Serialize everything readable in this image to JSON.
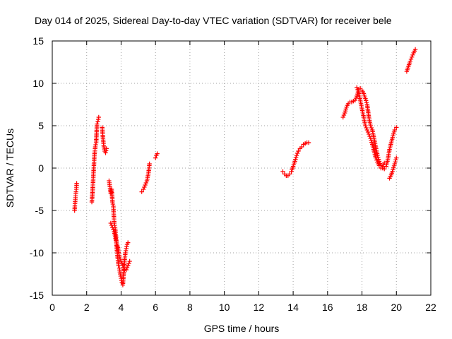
{
  "chart_data": {
    "type": "scatter",
    "title": "Day 014 of 2025, Sidereal Day-to-day VTEC variation (SDTVAR) for receiver bele",
    "xlabel": "GPS time / hours",
    "ylabel": "SDTVAR / TECUs",
    "xlim": [
      0,
      22
    ],
    "ylim": [
      -15,
      15
    ],
    "xticks": [
      0,
      2,
      4,
      6,
      8,
      10,
      12,
      14,
      16,
      18,
      20,
      22
    ],
    "yticks": [
      -15,
      -10,
      -5,
      0,
      5,
      10,
      15
    ],
    "xtick_labels": [
      "0",
      "2",
      "4",
      "6",
      "8",
      "10",
      "12",
      "14",
      "16",
      "18",
      "20",
      "22"
    ],
    "ytick_labels": [
      "-15",
      "-10",
      "-5",
      "0",
      "5",
      "10",
      "15"
    ],
    "grid": true,
    "marker": "+",
    "color": "#ff0000",
    "series": [
      {
        "name": "SDTVAR",
        "segments": [
          [
            [
              1.3,
              -5.0
            ],
            [
              1.32,
              -4.2
            ],
            [
              1.35,
              -3.5
            ],
            [
              1.38,
              -2.8
            ],
            [
              1.4,
              -2.5
            ],
            [
              1.42,
              -1.8
            ]
          ],
          [
            [
              2.3,
              -4.0
            ],
            [
              2.35,
              -2.5
            ],
            [
              2.4,
              -0.5
            ],
            [
              2.45,
              1.5
            ],
            [
              2.5,
              2.5
            ],
            [
              2.55,
              3.0
            ],
            [
              2.6,
              5.2
            ],
            [
              2.65,
              5.5
            ],
            [
              2.7,
              6.0
            ]
          ],
          [
            [
              2.9,
              4.8
            ],
            [
              2.95,
              3.5
            ],
            [
              3.0,
              2.5
            ],
            [
              3.05,
              2.0
            ],
            [
              3.1,
              1.8
            ],
            [
              3.15,
              2.3
            ]
          ],
          [
            [
              3.3,
              -1.5
            ],
            [
              3.35,
              -2.2
            ],
            [
              3.4,
              -3.0
            ],
            [
              3.45,
              -2.5
            ],
            [
              3.5,
              -4.0
            ],
            [
              3.55,
              -4.5
            ],
            [
              3.6,
              -6.5
            ],
            [
              3.65,
              -7.0
            ],
            [
              3.7,
              -8.0
            ],
            [
              3.75,
              -9.5
            ],
            [
              3.8,
              -10.5
            ],
            [
              3.85,
              -11.5
            ],
            [
              3.9,
              -11.8
            ],
            [
              3.95,
              -12.5
            ],
            [
              4.0,
              -13.0
            ],
            [
              4.05,
              -13.5
            ],
            [
              4.1,
              -13.8
            ],
            [
              4.15,
              -12.5
            ],
            [
              4.2,
              -11.0
            ],
            [
              4.25,
              -10.0
            ],
            [
              4.3,
              -9.5
            ],
            [
              4.35,
              -9.0
            ],
            [
              4.4,
              -8.8
            ]
          ],
          [
            [
              3.4,
              -6.5
            ],
            [
              3.5,
              -7.0
            ],
            [
              3.6,
              -7.5
            ],
            [
              3.7,
              -8.5
            ],
            [
              3.8,
              -9.2
            ],
            [
              3.9,
              -10.5
            ],
            [
              4.0,
              -11.0
            ],
            [
              4.1,
              -11.5
            ],
            [
              4.2,
              -12.0
            ],
            [
              4.3,
              -12.0
            ],
            [
              4.4,
              -11.5
            ],
            [
              4.5,
              -11.0
            ]
          ],
          [
            [
              5.2,
              -2.8
            ],
            [
              5.3,
              -2.5
            ],
            [
              5.4,
              -2.0
            ],
            [
              5.5,
              -1.5
            ],
            [
              5.6,
              -0.5
            ],
            [
              5.65,
              0.5
            ]
          ],
          [
            [
              6.0,
              1.2
            ],
            [
              6.05,
              1.5
            ],
            [
              6.1,
              1.7
            ]
          ],
          [
            [
              13.4,
              -0.4
            ],
            [
              13.5,
              -0.7
            ],
            [
              13.6,
              -0.9
            ],
            [
              13.7,
              -0.9
            ],
            [
              13.8,
              -0.7
            ],
            [
              13.9,
              -0.4
            ],
            [
              14.0,
              0.2
            ],
            [
              14.1,
              0.8
            ],
            [
              14.2,
              1.5
            ],
            [
              14.3,
              2.0
            ],
            [
              14.4,
              2.3
            ],
            [
              14.5,
              2.5
            ],
            [
              14.6,
              2.8
            ],
            [
              14.7,
              2.9
            ],
            [
              14.8,
              3.0
            ],
            [
              14.9,
              3.0
            ]
          ],
          [
            [
              16.9,
              6.0
            ],
            [
              17.0,
              6.5
            ],
            [
              17.1,
              7.2
            ],
            [
              17.2,
              7.6
            ],
            [
              17.3,
              7.8
            ],
            [
              17.4,
              7.8
            ],
            [
              17.5,
              7.9
            ],
            [
              17.6,
              8.0
            ],
            [
              17.7,
              8.5
            ],
            [
              17.8,
              9.2
            ],
            [
              17.9,
              9.4
            ],
            [
              18.0,
              9.2
            ],
            [
              18.1,
              8.8
            ],
            [
              18.2,
              8.2
            ],
            [
              18.3,
              7.5
            ],
            [
              18.4,
              6.0
            ],
            [
              18.5,
              5.0
            ],
            [
              18.6,
              4.5
            ],
            [
              18.7,
              3.5
            ],
            [
              18.8,
              2.5
            ],
            [
              18.9,
              1.5
            ],
            [
              19.0,
              0.8
            ],
            [
              19.1,
              0.3
            ],
            [
              19.2,
              0.0
            ],
            [
              19.3,
              -0.1
            ],
            [
              19.4,
              0.2
            ],
            [
              19.5,
              1.0
            ],
            [
              19.6,
              2.2
            ],
            [
              19.7,
              3.0
            ],
            [
              19.8,
              3.8
            ],
            [
              19.9,
              4.5
            ],
            [
              20.0,
              4.8
            ]
          ],
          [
            [
              17.7,
              9.5
            ],
            [
              17.8,
              9.0
            ],
            [
              17.9,
              8.0
            ],
            [
              18.0,
              7.0
            ],
            [
              18.1,
              6.0
            ],
            [
              18.2,
              5.0
            ],
            [
              18.3,
              4.5
            ],
            [
              18.4,
              4.0
            ],
            [
              18.5,
              3.5
            ],
            [
              18.6,
              2.8
            ],
            [
              18.7,
              2.0
            ],
            [
              18.8,
              1.2
            ],
            [
              18.9,
              0.7
            ],
            [
              19.0,
              0.3
            ],
            [
              19.1,
              0.0
            ],
            [
              19.2,
              0.2
            ],
            [
              19.3,
              0.6
            ]
          ],
          [
            [
              19.6,
              -1.2
            ],
            [
              19.7,
              -0.8
            ],
            [
              19.8,
              -0.2
            ],
            [
              19.9,
              0.5
            ],
            [
              20.0,
              1.2
            ]
          ],
          [
            [
              20.6,
              11.4
            ],
            [
              20.7,
              12.0
            ],
            [
              20.8,
              12.6
            ],
            [
              20.9,
              13.1
            ],
            [
              21.0,
              13.6
            ],
            [
              21.1,
              14.0
            ]
          ]
        ]
      }
    ]
  }
}
